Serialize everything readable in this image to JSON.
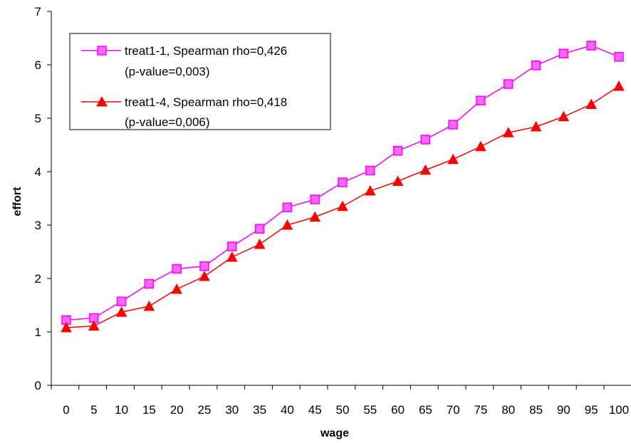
{
  "chart_data": {
    "type": "line",
    "title": "",
    "xlabel": "wage",
    "ylabel": "effort",
    "categories": [
      "0",
      "5",
      "10",
      "15",
      "20",
      "25",
      "30",
      "35",
      "40",
      "45",
      "50",
      "55",
      "60",
      "65",
      "70",
      "75",
      "80",
      "85",
      "90",
      "95",
      "100"
    ],
    "ylim": [
      0,
      7
    ],
    "yticks": [
      "0",
      "1",
      "2",
      "3",
      "4",
      "5",
      "6",
      "7"
    ],
    "grid": false,
    "legend_position": "top-left",
    "series": [
      {
        "name": "treat1-1, Spearman rho=0,426",
        "name_line2": "(p-value=0,003)",
        "color": "#ff00ff",
        "marker": "square",
        "marker_fill": "#ff66ff",
        "values": [
          1.22,
          1.26,
          1.57,
          1.9,
          2.18,
          2.23,
          2.6,
          2.93,
          3.33,
          3.48,
          3.8,
          4.02,
          4.39,
          4.6,
          4.88,
          5.33,
          5.64,
          5.99,
          6.21,
          6.36,
          6.15
        ]
      },
      {
        "name": "treat1-4, Spearman rho=0,418",
        "name_line2": "(p-value=0,006)",
        "color": "#ff0000",
        "marker": "triangle",
        "marker_fill": "#ff0000",
        "values": [
          1.08,
          1.11,
          1.37,
          1.48,
          1.8,
          2.04,
          2.4,
          2.64,
          3.0,
          3.15,
          3.35,
          3.64,
          3.82,
          4.03,
          4.23,
          4.47,
          4.73,
          4.84,
          5.03,
          5.26,
          5.6
        ]
      }
    ]
  }
}
